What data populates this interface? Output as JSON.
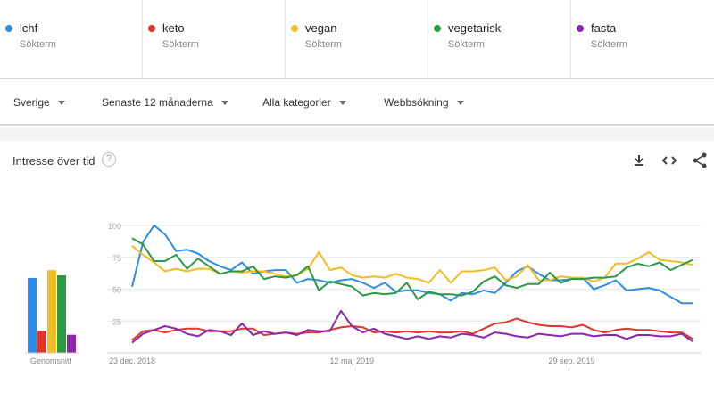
{
  "terms": [
    {
      "name": "lchf",
      "sub": "Sökterm",
      "color": "#2e8ce6"
    },
    {
      "name": "keto",
      "sub": "Sökterm",
      "color": "#e0352b"
    },
    {
      "name": "vegan",
      "sub": "Sökterm",
      "color": "#f5bb22"
    },
    {
      "name": "vegetarisk",
      "sub": "Sökterm",
      "color": "#2a9b45"
    },
    {
      "name": "fasta",
      "sub": "Sökterm",
      "color": "#8f27ab"
    }
  ],
  "filters": {
    "region": "Sverige",
    "time": "Senaste 12 månaderna",
    "category": "Alla kategorier",
    "search_type": "Webbsökning"
  },
  "section": {
    "title": "Intresse över tid",
    "help_icon": "question-circle-icon",
    "tools": [
      "download-icon",
      "embed-code-icon",
      "share-icon"
    ]
  },
  "chart_data": {
    "type": "line",
    "title": "",
    "xlabel": "",
    "ylabel": "",
    "ylim": [
      0,
      100
    ],
    "yticks": [
      "25",
      "50",
      "75",
      "100"
    ],
    "xticks": [
      "23 dec. 2018",
      "12 maj 2019",
      "29 sep. 2019"
    ],
    "grid": true,
    "averages": {
      "label": "Genomsnitt",
      "values": [
        58,
        17,
        64,
        60,
        14
      ]
    },
    "series": [
      {
        "name": "lchf",
        "color": "#2e8ce6",
        "values": [
          52,
          87,
          100,
          93,
          80,
          81,
          78,
          72,
          68,
          65,
          71,
          62,
          64,
          65,
          65,
          55,
          58,
          57,
          55,
          57,
          58,
          55,
          51,
          55,
          48,
          49,
          49,
          47,
          46,
          41,
          47,
          46,
          49,
          47,
          55,
          64,
          68,
          62,
          57,
          57,
          58,
          59,
          50,
          53,
          57,
          49,
          50,
          51,
          49,
          44,
          39,
          39
        ]
      },
      {
        "name": "keto",
        "color": "#e0352b",
        "values": [
          10,
          17,
          18,
          16,
          18,
          19,
          19,
          17,
          17,
          17,
          19,
          19,
          14,
          15,
          16,
          15,
          16,
          16,
          18,
          20,
          21,
          20,
          16,
          17,
          16,
          17,
          16,
          17,
          16,
          16,
          17,
          15,
          19,
          23,
          24,
          27,
          24,
          22,
          21,
          21,
          20,
          22,
          18,
          16,
          18,
          19,
          18,
          18,
          17,
          16,
          16,
          11
        ]
      },
      {
        "name": "vegan",
        "color": "#f5bb22",
        "values": [
          84,
          77,
          71,
          64,
          66,
          64,
          66,
          66,
          62,
          64,
          63,
          64,
          64,
          62,
          60,
          61,
          66,
          79,
          65,
          67,
          61,
          59,
          60,
          59,
          62,
          59,
          58,
          55,
          65,
          55,
          64,
          64,
          65,
          67,
          57,
          60,
          69,
          57,
          57,
          60,
          59,
          59,
          56,
          59,
          70,
          70,
          74,
          79,
          73,
          72,
          71,
          69
        ]
      },
      {
        "name": "vegetarisk",
        "color": "#2a9b45",
        "values": [
          90,
          85,
          72,
          72,
          77,
          66,
          74,
          68,
          62,
          64,
          64,
          68,
          58,
          60,
          59,
          61,
          68,
          49,
          56,
          54,
          52,
          45,
          47,
          46,
          47,
          55,
          42,
          48,
          46,
          46,
          45,
          48,
          56,
          60,
          53,
          51,
          54,
          54,
          63,
          55,
          58,
          58,
          59,
          59,
          60,
          67,
          70,
          68,
          71,
          65,
          69,
          73
        ]
      },
      {
        "name": "fasta",
        "color": "#8f27ab",
        "values": [
          8,
          15,
          18,
          21,
          19,
          15,
          13,
          18,
          17,
          14,
          23,
          14,
          17,
          15,
          16,
          14,
          18,
          17,
          17,
          33,
          21,
          16,
          19,
          15,
          13,
          11,
          13,
          11,
          13,
          12,
          15,
          14,
          12,
          16,
          15,
          13,
          12,
          15,
          14,
          13,
          15,
          15,
          13,
          14,
          14,
          11,
          14,
          14,
          13,
          13,
          15,
          9
        ]
      }
    ]
  }
}
